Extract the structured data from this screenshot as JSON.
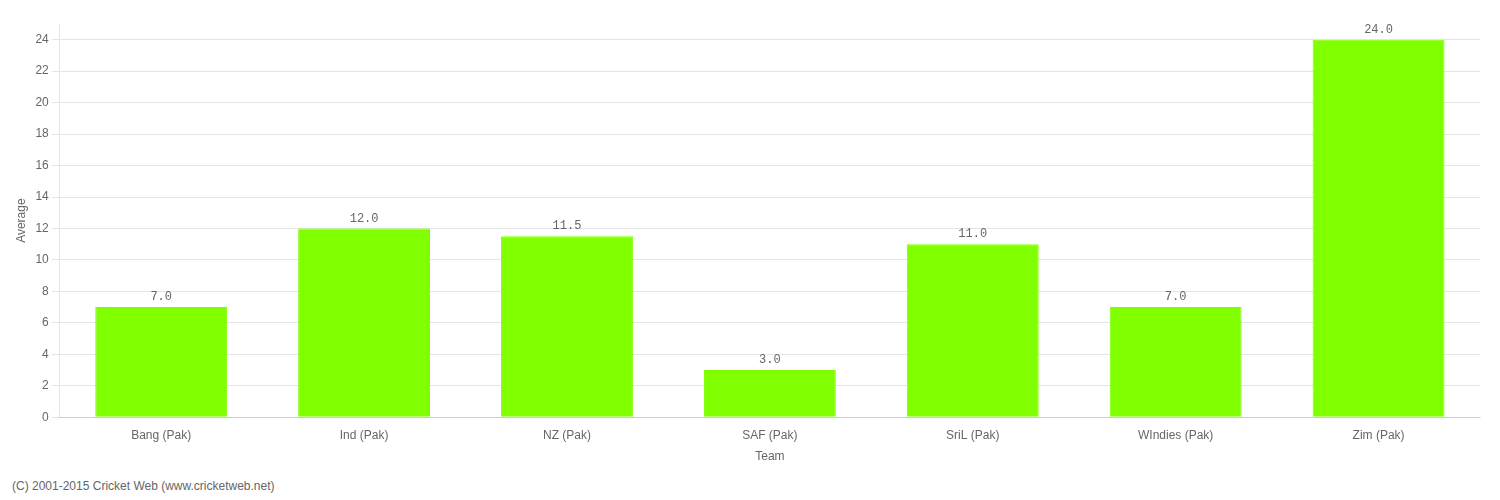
{
  "chart_data": {
    "type": "bar",
    "categories": [
      "Bang (Pak)",
      "Ind (Pak)",
      "NZ (Pak)",
      "SAF (Pak)",
      "SriL (Pak)",
      "WIndies (Pak)",
      "Zim (Pak)"
    ],
    "values": [
      7.0,
      12.0,
      11.5,
      3.0,
      11.0,
      7.0,
      24.0
    ],
    "value_labels": [
      "7.0",
      "12.0",
      "11.5",
      "3.0",
      "11.0",
      "7.0",
      "24.0"
    ],
    "data_labels": true,
    "color": "#7fff00",
    "x_label": "Team",
    "y_label": "Average",
    "ylim": [
      0,
      25
    ],
    "yticks": [
      0,
      2,
      4,
      6,
      8,
      10,
      12,
      14,
      16,
      18,
      20,
      22,
      24
    ],
    "grid": true,
    "annotations": [
      "(C) 2001-2015 Cricket Web (www.cricketweb.net)"
    ]
  }
}
